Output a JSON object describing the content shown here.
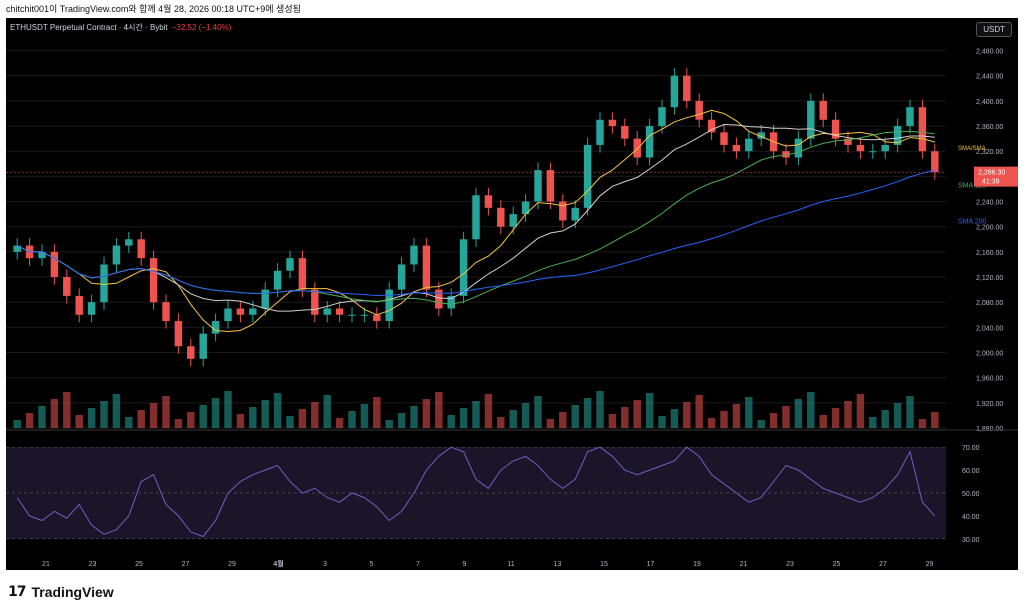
{
  "header": {
    "snapshot_text": "chitchit001이 TradingView.com와 함께 4월 28, 2026 00:18 UTC+9에 생성됨"
  },
  "chart_header": {
    "title": "ETHUSDT Perpetual Contract · 4시간 · Bybit",
    "change": "−32.52 (−1.40%)",
    "currency_button": "USDT"
  },
  "footer": {
    "brand": "TradingView"
  },
  "colors": {
    "up": "#26a69a",
    "down": "#ef5350",
    "rsi": "#7e57c2",
    "sma_yellow": "#f5c542",
    "sma_white": "#d0d0d0",
    "sma_green": "#4caf50",
    "sma_blue": "#2962ff"
  },
  "chart_data": [
    {
      "type": "line",
      "series_kind": "candlestick_approx",
      "x_ticks": [
        "21",
        "23",
        "25",
        "27",
        "29",
        "4월",
        "3",
        "5",
        "7",
        "9",
        "11",
        "13",
        "15",
        "17",
        "19",
        "21",
        "23",
        "25",
        "27",
        "29"
      ],
      "y_ticks": [
        "2,480.00",
        "2,440.00",
        "2,400.00",
        "2,360.00",
        "2,320.00",
        "2,280.00",
        "2,240.00",
        "2,200.00",
        "2,160.00",
        "2,120.00",
        "2,080.00",
        "2,040.00",
        "2,000.00",
        "1,960.00",
        "1,920.00",
        "1,880.00"
      ],
      "ylim": [
        1880,
        2500
      ],
      "close_path": [
        2170,
        2150,
        2160,
        2120,
        2090,
        2060,
        2080,
        2140,
        2170,
        2180,
        2150,
        2080,
        2050,
        2010,
        1990,
        2030,
        2050,
        2070,
        2060,
        2070,
        2100,
        2130,
        2150,
        2100,
        2060,
        2070,
        2060,
        2060,
        2060,
        2050,
        2100,
        2140,
        2170,
        2100,
        2070,
        2090,
        2180,
        2250,
        2230,
        2200,
        2220,
        2240,
        2290,
        2240,
        2210,
        2230,
        2330,
        2370,
        2360,
        2340,
        2310,
        2360,
        2390,
        2440,
        2400,
        2370,
        2350,
        2330,
        2320,
        2340,
        2350,
        2320,
        2310,
        2340,
        2400,
        2370,
        2340,
        2330,
        2320,
        2320,
        2330,
        2360,
        2390,
        2320,
        2287
      ],
      "sma_labels": [
        "SMA 120",
        "SMA 200"
      ],
      "price_label": "2,286.30",
      "countdown": "41:39",
      "ma_overlap_label": "SMA/SMA"
    },
    {
      "type": "line",
      "name": "RSI",
      "y_ticks": [
        "70.00",
        "60.00",
        "50.00",
        "40.00",
        "30.00"
      ],
      "ylim": [
        26,
        74
      ],
      "values": [
        48,
        40,
        38,
        42,
        39,
        45,
        36,
        32,
        34,
        40,
        55,
        58,
        45,
        40,
        33,
        31,
        38,
        50,
        55,
        58,
        60,
        62,
        55,
        50,
        52,
        48,
        46,
        50,
        48,
        44,
        38,
        42,
        50,
        60,
        66,
        70,
        68,
        56,
        52,
        60,
        64,
        66,
        62,
        56,
        52,
        56,
        68,
        70,
        66,
        60,
        58,
        60,
        62,
        64,
        70,
        66,
        58,
        54,
        50,
        46,
        48,
        55,
        62,
        60,
        56,
        52,
        50,
        48,
        46,
        48,
        52,
        58,
        68,
        46,
        40
      ]
    }
  ]
}
